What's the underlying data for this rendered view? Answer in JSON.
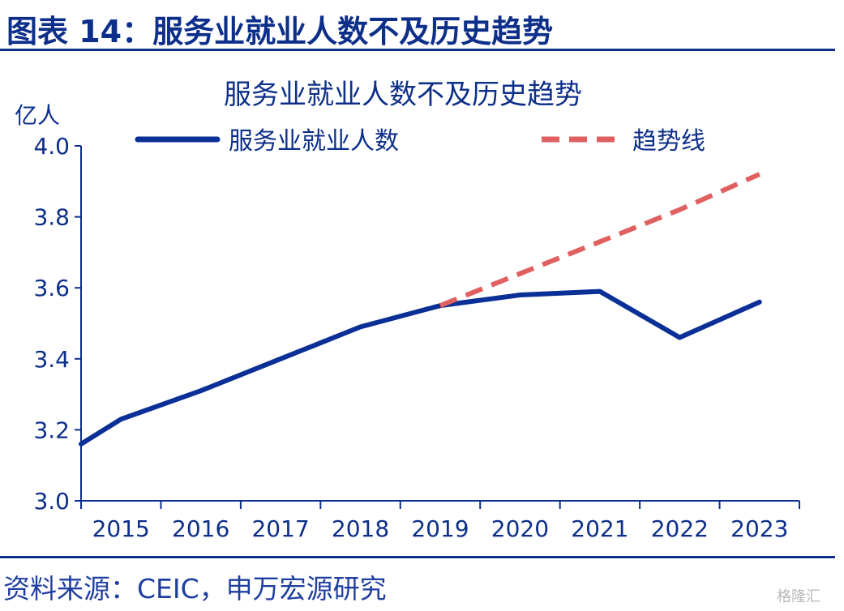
{
  "header": {
    "figure_title": "图表 14：服务业就业人数不及历史趋势"
  },
  "footer": {
    "source": "资料来源：CEIC，申万宏源研究",
    "watermark": "格隆汇"
  },
  "colors": {
    "accent": "#0d2f8a",
    "series_main": "#0a2f96",
    "series_trend": "#e06060"
  },
  "chart_data": {
    "type": "line",
    "title": "服务业就业人数不及历史趋势",
    "ylabel": "亿人",
    "xlabel": "",
    "ylim": [
      3.0,
      4.0
    ],
    "yticks": [
      "3.0",
      "3.2",
      "3.4",
      "3.6",
      "3.8",
      "4.0"
    ],
    "xticks": [
      "2015",
      "2016",
      "2017",
      "2018",
      "2019",
      "2020",
      "2021",
      "2022",
      "2023"
    ],
    "legend_position": "top",
    "grid": false,
    "series": [
      {
        "name": "服务业就业人数",
        "style": "solid",
        "points": [
          [
            2014.5,
            3.16
          ],
          [
            2015.0,
            3.23
          ],
          [
            2016.0,
            3.31
          ],
          [
            2017.0,
            3.4
          ],
          [
            2018.0,
            3.49
          ],
          [
            2019.0,
            3.55
          ],
          [
            2020.0,
            3.58
          ],
          [
            2021.0,
            3.59
          ],
          [
            2022.0,
            3.46
          ],
          [
            2023.0,
            3.56
          ]
        ]
      },
      {
        "name": "趋势线",
        "style": "dashed",
        "points": [
          [
            2019.0,
            3.55
          ],
          [
            2020.0,
            3.64
          ],
          [
            2021.0,
            3.73
          ],
          [
            2022.0,
            3.82
          ],
          [
            2023.0,
            3.92
          ]
        ]
      }
    ]
  }
}
